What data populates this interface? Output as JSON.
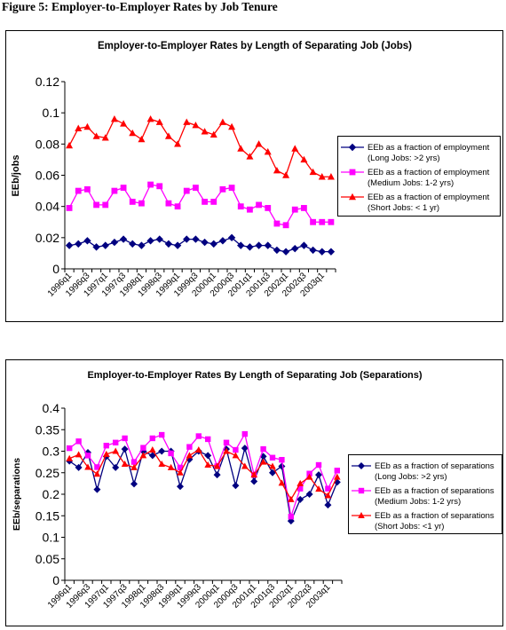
{
  "figure_title": "Figure 5: Employer-to-Employer Rates by Job Tenure",
  "chart_data": [
    {
      "type": "line",
      "title": "Employer-to-Employer Rates by Length of Separating Job (Jobs)",
      "xlabel": "",
      "ylabel": "EEb/jobs",
      "ylim": [
        0,
        0.12
      ],
      "yticks": [
        "0",
        "0.02",
        "0.04",
        "0.06",
        "0.08",
        "0.1",
        "0.12"
      ],
      "grid": false,
      "legend": "right",
      "categories": [
        "1996q1",
        "1996q2",
        "1996q3",
        "1996q4",
        "1997q1",
        "1997q2",
        "1997q3",
        "1997q4",
        "1998q1",
        "1998q2",
        "1998q3",
        "1998q4",
        "1999q1",
        "1999q2",
        "1999q3",
        "1999q4",
        "2000q1",
        "2000q2",
        "2000q3",
        "2000q4",
        "2001q1",
        "2001q2",
        "2001q3",
        "2001q4",
        "2002q1",
        "2002q2",
        "2002q3",
        "2002q4",
        "2003q1",
        "2003q2"
      ],
      "xtick_labels": [
        "1996q1",
        "1996q3",
        "1997q1",
        "1997q3",
        "1998q1",
        "1998q3",
        "1999q1",
        "1999q3",
        "2000q1",
        "2000q3",
        "2001q1",
        "2001q3",
        "2002q1",
        "2002q3",
        "2003q1"
      ],
      "series": [
        {
          "name": "EEb as a fraction of employment (Long Jobs: >2 yrs)",
          "legend_lines": [
            "EEb as a fraction of employment",
            "(Long Jobs: >2 yrs)"
          ],
          "color": "#000080",
          "marker": "diamond",
          "values": [
            0.015,
            0.016,
            0.018,
            0.014,
            0.015,
            0.017,
            0.019,
            0.016,
            0.015,
            0.018,
            0.019,
            0.016,
            0.015,
            0.019,
            0.019,
            0.017,
            0.016,
            0.018,
            0.02,
            0.015,
            0.014,
            0.015,
            0.015,
            0.012,
            0.011,
            0.013,
            0.015,
            0.012,
            0.011,
            0.011
          ]
        },
        {
          "name": "EEb as a fraction of employment (Medium Jobs: 1-2 yrs)",
          "legend_lines": [
            "EEb as a fraction of employment",
            "(Medium Jobs: 1-2 yrs)"
          ],
          "color": "#ff00ff",
          "marker": "square",
          "values": [
            0.039,
            0.05,
            0.051,
            0.041,
            0.041,
            0.05,
            0.052,
            0.043,
            0.042,
            0.054,
            0.053,
            0.042,
            0.04,
            0.05,
            0.052,
            0.043,
            0.043,
            0.051,
            0.052,
            0.04,
            0.038,
            0.041,
            0.039,
            0.029,
            0.028,
            0.038,
            0.039,
            0.03,
            0.03,
            0.03
          ]
        },
        {
          "name": "EEb as a fraction of employment (Short Jobs: < 1 yr)",
          "legend_lines": [
            "EEb as a fraction of employment",
            "(Short Jobs: < 1 yr)"
          ],
          "color": "#ff0000",
          "marker": "triangle",
          "values": [
            0.079,
            0.09,
            0.091,
            0.085,
            0.084,
            0.096,
            0.093,
            0.087,
            0.083,
            0.096,
            0.094,
            0.085,
            0.08,
            0.094,
            0.092,
            0.088,
            0.086,
            0.094,
            0.091,
            0.077,
            0.072,
            0.08,
            0.075,
            0.063,
            0.06,
            0.077,
            0.07,
            0.062,
            0.059,
            0.059
          ]
        }
      ]
    },
    {
      "type": "line",
      "title": "Employer-to-Employer Rates By Length of Separating Job (Separations)",
      "xlabel": "",
      "ylabel": "EEb/separations",
      "ylim": [
        0,
        0.4
      ],
      "yticks": [
        "0",
        "0.05",
        "0.1",
        "0.15",
        "0.2",
        "0.25",
        "0.3",
        "0.35",
        "0.4"
      ],
      "grid": false,
      "legend": "right",
      "categories": [
        "1996q1",
        "1996q2",
        "1996q3",
        "1996q4",
        "1997q1",
        "1997q2",
        "1997q3",
        "1997q4",
        "1998q1",
        "1998q2",
        "1998q3",
        "1998q4",
        "1999q1",
        "1999q2",
        "1999q3",
        "1999q4",
        "2000q1",
        "2000q2",
        "2000q3",
        "2000q4",
        "2001q1",
        "2001q2",
        "2001q3",
        "2001q4",
        "2002q1",
        "2002q2",
        "2002q3",
        "2002q4",
        "2003q1",
        "2003q2"
      ],
      "xtick_labels": [
        "1996q1",
        "1996q3",
        "1997q1",
        "1997q3",
        "1998q1",
        "1998q3",
        "1999q1",
        "1999q3",
        "2000q1",
        "2000q3",
        "2001q1",
        "2001q3",
        "2002q1",
        "2002q3",
        "2003q1"
      ],
      "series": [
        {
          "name": "EEb as a fraction of separations (Long Jobs: >2 yrs)",
          "legend_lines": [
            "EEb as a fraction of separations",
            "(Long Jobs: >2 yrs)"
          ],
          "color": "#000080",
          "marker": "diamond",
          "values": [
            0.277,
            0.262,
            0.297,
            0.211,
            0.288,
            0.262,
            0.305,
            0.224,
            0.3,
            0.29,
            0.3,
            0.3,
            0.218,
            0.281,
            0.3,
            0.29,
            0.245,
            0.305,
            0.22,
            0.307,
            0.23,
            0.288,
            0.25,
            0.265,
            0.138,
            0.188,
            0.2,
            0.245,
            0.175,
            0.228
          ]
        },
        {
          "name": "EEb as a fraction of separations (Medium Jobs: 1-2 yrs)",
          "legend_lines": [
            "EEb as a fraction of separations",
            "(Medium Jobs: 1-2 yrs)"
          ],
          "color": "#ff00ff",
          "marker": "square",
          "values": [
            0.307,
            0.323,
            0.29,
            0.263,
            0.313,
            0.32,
            0.33,
            0.275,
            0.308,
            0.33,
            0.338,
            0.295,
            0.262,
            0.31,
            0.335,
            0.328,
            0.265,
            0.32,
            0.303,
            0.34,
            0.245,
            0.305,
            0.285,
            0.28,
            0.148,
            0.213,
            0.248,
            0.268,
            0.213,
            0.255
          ]
        },
        {
          "name": "EEb as a fraction of separations (Short Jobs: <1 yr)",
          "legend_lines": [
            "EEb as a fraction of separations",
            "(Short Jobs: <1 yr)"
          ],
          "color": "#ff0000",
          "marker": "triangle",
          "values": [
            0.283,
            0.292,
            0.263,
            0.247,
            0.293,
            0.3,
            0.27,
            0.262,
            0.29,
            0.303,
            0.27,
            0.262,
            0.25,
            0.29,
            0.303,
            0.268,
            0.265,
            0.3,
            0.29,
            0.265,
            0.245,
            0.275,
            0.265,
            0.226,
            0.188,
            0.225,
            0.24,
            0.212,
            0.197,
            0.24
          ]
        }
      ]
    }
  ]
}
